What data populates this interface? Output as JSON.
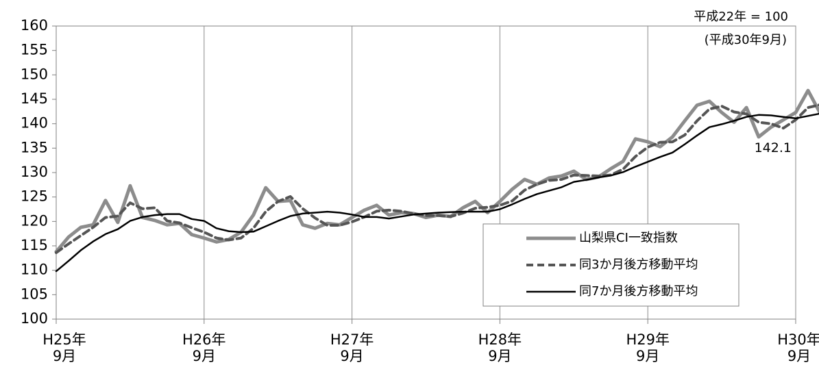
{
  "chart_data": {
    "type": "line",
    "title": "",
    "xlabel": "",
    "ylabel": "",
    "ylim": [
      100,
      160
    ],
    "y_ticks": [
      "100",
      "105",
      "110",
      "115",
      "120",
      "125",
      "130",
      "135",
      "140",
      "145",
      "150",
      "155",
      "160"
    ],
    "x_tick_labels": [
      {
        "year": "H25年",
        "month": "9月"
      },
      {
        "year": "H26年",
        "month": "9月"
      },
      {
        "year": "H27年",
        "month": "9月"
      },
      {
        "year": "H28年",
        "month": "9月"
      },
      {
        "year": "H29年",
        "month": "9月"
      },
      {
        "year": "H30年",
        "month": "9月"
      }
    ],
    "x_start_period": 0,
    "x_end_period": 60,
    "base_note": "平成22年 = 100",
    "period_note": "(平成30年9月)",
    "last_value_label": "142.1",
    "grid": "vertical lines at each September",
    "legend_position": "bottom-right",
    "series": [
      {
        "name": "山梨県CI一致指数",
        "style": "thick-gray",
        "color": "#8c8c8c",
        "values": [
          113.8,
          116.8,
          118.8,
          119.3,
          124.3,
          119.8,
          127.3,
          120.8,
          120.2,
          119.3,
          119.6,
          117.3,
          116.6,
          115.8,
          116.3,
          117.8,
          121.3,
          126.9,
          124.1,
          124.3,
          119.3,
          118.6,
          119.6,
          119.3,
          120.8,
          122.3,
          123.3,
          121.3,
          121.8,
          121.6,
          120.8,
          121.3,
          121.0,
          122.8,
          124.1,
          121.8,
          124.1,
          126.6,
          128.6,
          127.6,
          128.9,
          129.3,
          130.3,
          128.6,
          129.1,
          130.8,
          132.3,
          136.9,
          136.3,
          135.3,
          137.3,
          140.6,
          143.8,
          144.6,
          142.3,
          140.3,
          143.3,
          137.3,
          139.3,
          140.8,
          142.3,
          146.8,
          142.1
        ]
      },
      {
        "name": "同3か月後方移動平均",
        "style": "dashed",
        "color": "#555555",
        "values": [
          113.6,
          115.4,
          117.1,
          118.8,
          120.8,
          121.1,
          123.8,
          122.6,
          122.8,
          120.1,
          119.7,
          118.7,
          117.8,
          116.6,
          116.2,
          116.6,
          118.6,
          122.0,
          124.1,
          125.1,
          122.6,
          120.7,
          119.2,
          119.2,
          119.9,
          120.9,
          122.1,
          122.3,
          122.1,
          121.6,
          121.2,
          121.2,
          121.0,
          121.7,
          122.7,
          122.9,
          123.3,
          124.2,
          126.4,
          127.6,
          128.4,
          128.6,
          129.5,
          129.4,
          129.3,
          129.5,
          130.7,
          133.3,
          135.2,
          136.2,
          136.3,
          137.7,
          140.6,
          143.0,
          143.6,
          142.4,
          142.0,
          140.3,
          140.0,
          139.1,
          140.8,
          143.3,
          143.9
        ]
      },
      {
        "name": "同7か月後方移動平均",
        "style": "solid-thin",
        "color": "#000000",
        "values": [
          109.8,
          111.9,
          114.1,
          115.9,
          117.4,
          118.4,
          120.1,
          120.9,
          121.3,
          121.5,
          121.5,
          120.5,
          120.1,
          118.6,
          118.0,
          117.8,
          117.9,
          119.0,
          120.1,
          121.1,
          121.6,
          121.8,
          122.0,
          121.8,
          121.4,
          120.9,
          120.9,
          120.6,
          121.0,
          121.4,
          121.6,
          121.8,
          121.9,
          122.0,
          122.0,
          122.0,
          122.5,
          123.5,
          124.6,
          125.6,
          126.3,
          127.0,
          128.1,
          128.5,
          129.0,
          129.4,
          130.1,
          131.2,
          132.2,
          133.2,
          134.1,
          135.8,
          137.6,
          139.3,
          139.9,
          140.6,
          141.4,
          141.8,
          141.7,
          141.4,
          141.1,
          141.6,
          142.1
        ]
      }
    ]
  }
}
